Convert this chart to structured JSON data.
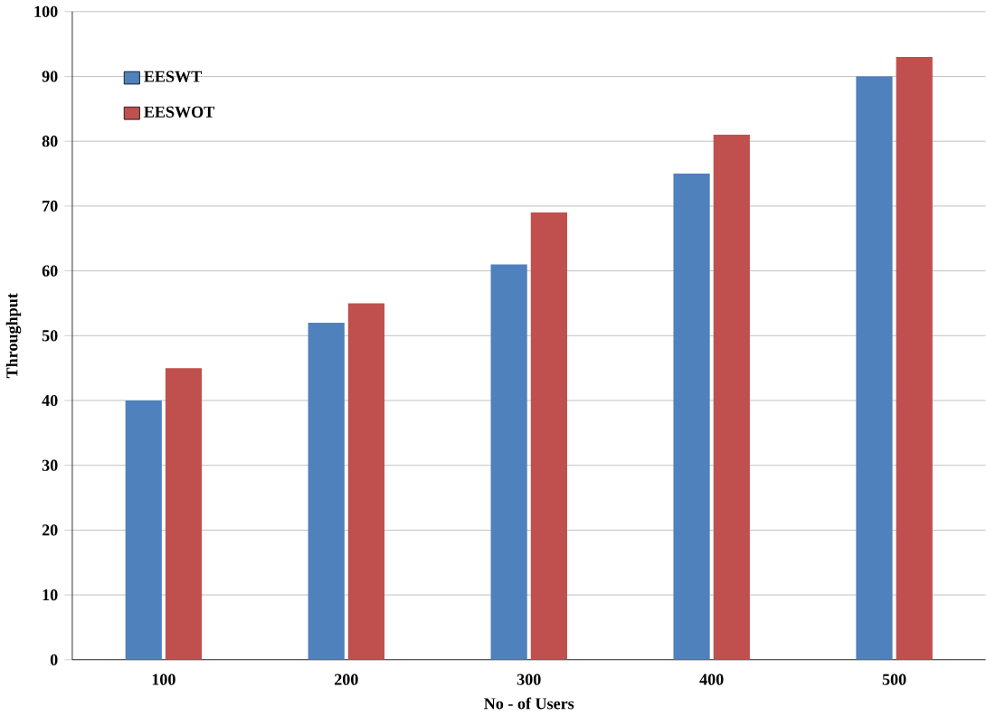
{
  "chart_data": {
    "type": "bar",
    "xlabel": "No - of Users",
    "ylabel": "Throughput",
    "categories": [
      "100",
      "200",
      "300",
      "400",
      "500"
    ],
    "series": [
      {
        "name": "EESWT",
        "color": "#4f81bd",
        "values": [
          40,
          52,
          61,
          75,
          90
        ]
      },
      {
        "name": "EESWOT",
        "color": "#c0504d",
        "values": [
          45,
          55,
          69,
          81,
          93
        ]
      }
    ],
    "ylim": [
      0,
      100
    ],
    "yticks": [
      0,
      10,
      20,
      30,
      40,
      50,
      60,
      70,
      80,
      90,
      100
    ],
    "grid": "y",
    "legend": "top left"
  }
}
